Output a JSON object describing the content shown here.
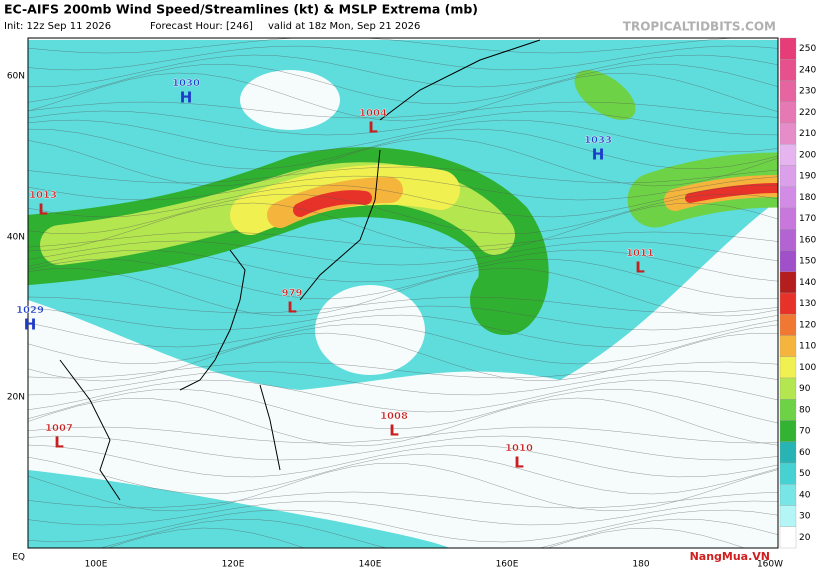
{
  "header": {
    "title": "EC-AIFS 200mb Wind Speed/Streamlines (kt) & MSLP Extrema (mb)",
    "init": "Init: 12z Sep 11 2026",
    "forecast_hour": "Forecast Hour: [246]",
    "valid": "valid at 18z Mon, Sep 21 2026",
    "site": "TROPICALTIDBITS.COM"
  },
  "lat_labels": [
    "60N",
    "40N",
    "20N",
    "EQ"
  ],
  "lon_labels": [
    "100E",
    "120E",
    "140E",
    "160E",
    "180",
    "160W"
  ],
  "pressure_centers": [
    {
      "value": 1030,
      "letter": "H"
    },
    {
      "value": 1004,
      "letter": "L"
    },
    {
      "value": 1013,
      "letter": "L"
    },
    {
      "value": 1033,
      "letter": "H"
    },
    {
      "value": 1011,
      "letter": "L"
    },
    {
      "value": 979,
      "letter": "L"
    },
    {
      "value": 1029,
      "letter": "H"
    },
    {
      "value": 1008,
      "letter": "L"
    },
    {
      "value": 1007,
      "letter": "L"
    },
    {
      "value": 1010,
      "letter": "L"
    }
  ],
  "colorbar": {
    "values": [
      250,
      240,
      230,
      220,
      210,
      200,
      190,
      180,
      170,
      160,
      150,
      140,
      130,
      120,
      110,
      100,
      90,
      80,
      70,
      60,
      50,
      40,
      30,
      20
    ],
    "colors": [
      "#e63c78",
      "#e6508c",
      "#e664a0",
      "#e678b4",
      "#e68cc8",
      "#e6b4ee",
      "#dca0ea",
      "#d28ce6",
      "#c878dc",
      "#b464d2",
      "#a050c8",
      "#b41e1e",
      "#e63228",
      "#f07832",
      "#f5b43c",
      "#f0f050",
      "#b4e650",
      "#6ed246",
      "#32b432",
      "#28b4b4",
      "#46d2d2",
      "#78e6e6",
      "#b4f5f5",
      "#ffffff"
    ]
  },
  "watermark": "NangMua.VN"
}
